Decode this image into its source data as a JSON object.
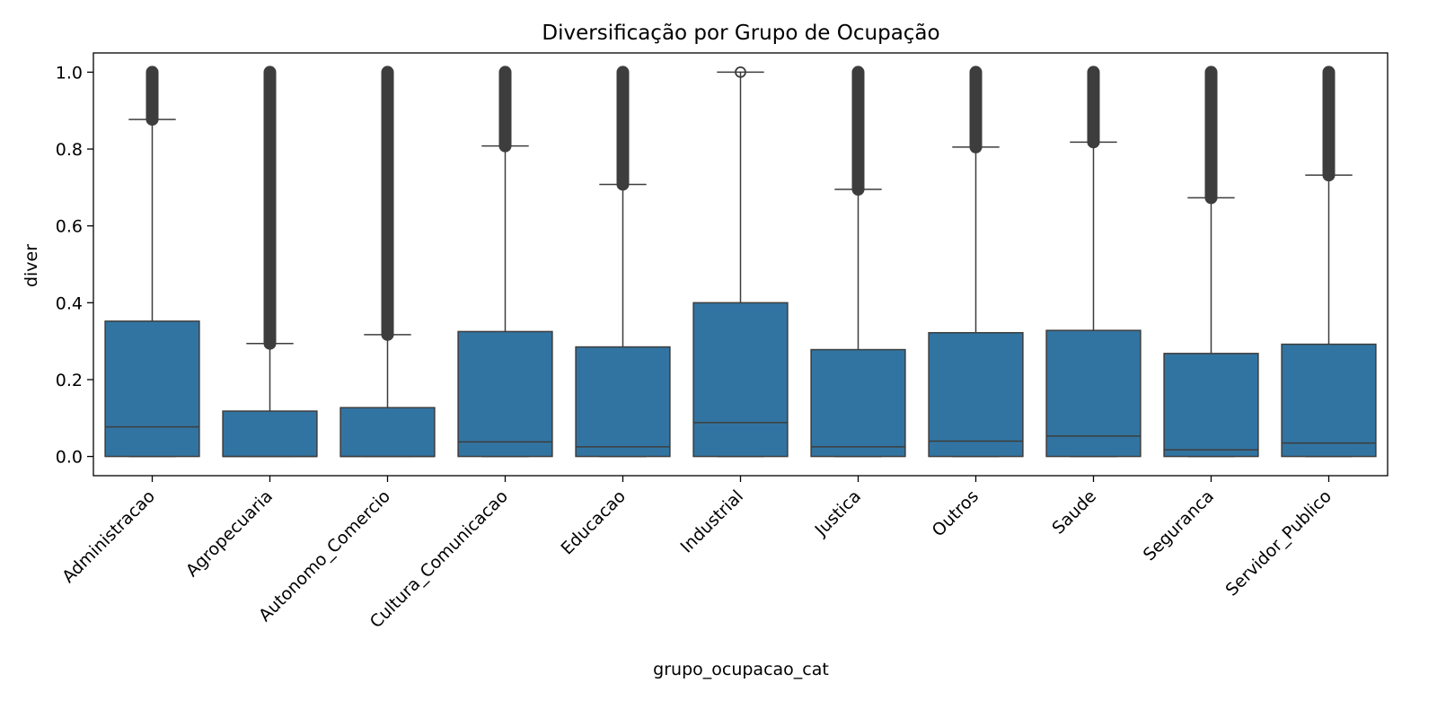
{
  "chart_data": {
    "type": "box",
    "title": "Diversificação por Grupo de Ocupação",
    "xlabel": "grupo_ocupacao_cat",
    "ylabel": "diver",
    "ylim": [
      -0.05,
      1.05
    ],
    "yticks": [
      "0.0",
      "0.2",
      "0.4",
      "0.6",
      "0.8",
      "1.0"
    ],
    "grid": false,
    "box_color": "#3274a1",
    "line_color": "#3d3d3d",
    "categories": [
      "Administracao",
      "Agropecuaria",
      "Autonomo_Comercio",
      "Cultura_Comunicacao",
      "Educacao",
      "Industrial",
      "Justica",
      "Outros",
      "Saude",
      "Seguranca",
      "Servidor_Publico"
    ],
    "boxes": [
      {
        "category": "Administracao",
        "q1": 0.0,
        "median": 0.077,
        "q3": 0.352,
        "whisker_low": 0.0,
        "whisker_high": 0.877,
        "outliers_from": 0.877,
        "outliers_to": 1.0
      },
      {
        "category": "Agropecuaria",
        "q1": 0.0,
        "median": 0.0,
        "q3": 0.118,
        "whisker_low": 0.0,
        "whisker_high": 0.294,
        "outliers_from": 0.294,
        "outliers_to": 1.0
      },
      {
        "category": "Autonomo_Comercio",
        "q1": 0.0,
        "median": 0.0,
        "q3": 0.127,
        "whisker_low": 0.0,
        "whisker_high": 0.317,
        "outliers_from": 0.317,
        "outliers_to": 1.0
      },
      {
        "category": "Cultura_Comunicacao",
        "q1": 0.0,
        "median": 0.038,
        "q3": 0.325,
        "whisker_low": 0.0,
        "whisker_high": 0.808,
        "outliers_from": 0.808,
        "outliers_to": 1.0
      },
      {
        "category": "Educacao",
        "q1": 0.0,
        "median": 0.025,
        "q3": 0.285,
        "whisker_low": 0.0,
        "whisker_high": 0.708,
        "outliers_from": 0.708,
        "outliers_to": 1.0
      },
      {
        "category": "Industrial",
        "q1": 0.0,
        "median": 0.088,
        "q3": 0.4,
        "whisker_low": 0.0,
        "whisker_high": 1.0,
        "outliers": [
          1.0
        ]
      },
      {
        "category": "Justica",
        "q1": 0.0,
        "median": 0.025,
        "q3": 0.278,
        "whisker_low": 0.0,
        "whisker_high": 0.695,
        "outliers_from": 0.695,
        "outliers_to": 1.0
      },
      {
        "category": "Outros",
        "q1": 0.0,
        "median": 0.04,
        "q3": 0.322,
        "whisker_low": 0.0,
        "whisker_high": 0.805,
        "outliers_from": 0.805,
        "outliers_to": 1.0
      },
      {
        "category": "Saude",
        "q1": 0.0,
        "median": 0.053,
        "q3": 0.328,
        "whisker_low": 0.0,
        "whisker_high": 0.818,
        "outliers_from": 0.818,
        "outliers_to": 1.0
      },
      {
        "category": "Seguranca",
        "q1": 0.0,
        "median": 0.017,
        "q3": 0.268,
        "whisker_low": 0.0,
        "whisker_high": 0.673,
        "outliers_from": 0.673,
        "outliers_to": 1.0
      },
      {
        "category": "Servidor_Publico",
        "q1": 0.0,
        "median": 0.035,
        "q3": 0.292,
        "whisker_low": 0.0,
        "whisker_high": 0.732,
        "outliers_from": 0.732,
        "outliers_to": 1.0
      }
    ]
  }
}
